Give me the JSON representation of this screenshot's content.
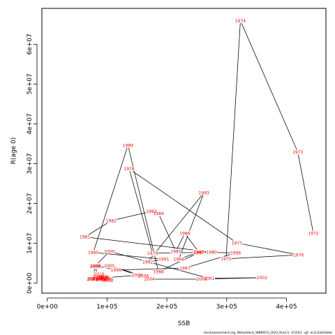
{
  "chart_data": {
    "type": "line",
    "xlabel": "SSB",
    "ylabel": "R(age 0)",
    "xlim": [
      -9000,
      466000
    ],
    "ylim": [
      -2500000,
      69000000
    ],
    "xticks": [
      {
        "value": 0,
        "label": "0e+00"
      },
      {
        "value": 100000,
        "label": "1e+05"
      },
      {
        "value": 200000,
        "label": "2e+05"
      },
      {
        "value": 300000,
        "label": "3e+05"
      },
      {
        "value": 400000,
        "label": "4e+05"
      }
    ],
    "yticks": [
      {
        "value": 0,
        "label": "0e+00"
      },
      {
        "value": 10000000,
        "label": "1e+07"
      },
      {
        "value": 20000000,
        "label": "2e+07"
      },
      {
        "value": 30000000,
        "label": "3e+07"
      },
      {
        "value": 40000000,
        "label": "4e+07"
      },
      {
        "value": 50000000,
        "label": "5e+07"
      },
      {
        "value": 60000000,
        "label": "6e+07"
      }
    ],
    "grid": false,
    "line_color": "#000000",
    "label_color": "#ff0000",
    "points": [
      {
        "year": "1972",
        "x": 445000,
        "y": 12500000
      },
      {
        "year": "1973",
        "x": 419000,
        "y": 32900000
      },
      {
        "year": "1974",
        "x": 323000,
        "y": 65900000
      },
      {
        "year": "1975",
        "x": 299000,
        "y": 6100000
      },
      {
        "year": "1976",
        "x": 420000,
        "y": 7100000
      },
      {
        "year": "1977",
        "x": 317000,
        "y": 10100000
      },
      {
        "year": "1978",
        "x": 137000,
        "y": 28700000
      },
      {
        "year": "1979",
        "x": 176000,
        "y": 7500000
      },
      {
        "year": "1980",
        "x": 275000,
        "y": 7800000
      },
      {
        "year": "1981",
        "x": 63000,
        "y": 11600000
      },
      {
        "year": "1982",
        "x": 107000,
        "y": 15700000
      },
      {
        "year": "1983",
        "x": 174000,
        "y": 18000000
      },
      {
        "year": "1984",
        "x": 186000,
        "y": 17500000
      },
      {
        "year": "1985",
        "x": 215000,
        "y": 8000000
      },
      {
        "year": "1986",
        "x": 230000,
        "y": 12500000
      },
      {
        "year": "1987",
        "x": 254000,
        "y": 7700000
      },
      {
        "year": "1988",
        "x": 186000,
        "y": 2900000
      },
      {
        "year": "1989",
        "x": 135000,
        "y": 34600000
      },
      {
        "year": "1990",
        "x": 77000,
        "y": 7700000
      },
      {
        "year": "1991",
        "x": 195000,
        "y": 6000000
      },
      {
        "year": "1992",
        "x": 168000,
        "y": 5300000
      },
      {
        "year": "1993",
        "x": 262000,
        "y": 22700000
      },
      {
        "year": "1994",
        "x": 220000,
        "y": 6000000
      },
      {
        "year": "1995",
        "x": 253000,
        "y": 7800000
      },
      {
        "year": "1996",
        "x": 315000,
        "y": 7600000
      },
      {
        "year": "1997",
        "x": 230000,
        "y": 3800000
      },
      {
        "year": "1998",
        "x": 115000,
        "y": 3300000
      },
      {
        "year": "1999",
        "x": 81000,
        "y": 4400000
      },
      {
        "year": "2000",
        "x": 104000,
        "y": 8000000
      },
      {
        "year": "2001",
        "x": 271000,
        "y": 1200000
      },
      {
        "year": "2002",
        "x": 359000,
        "y": 1400000
      },
      {
        "year": "2003",
        "x": 258000,
        "y": 1000000
      },
      {
        "year": "2004",
        "x": 171000,
        "y": 1000000
      },
      {
        "year": "2005",
        "x": 104000,
        "y": 4400000
      },
      {
        "year": "2006",
        "x": 161000,
        "y": 1800000
      },
      {
        "year": "2007",
        "x": 150000,
        "y": 2000000
      },
      {
        "year": "2008",
        "x": 76000,
        "y": 1100000
      },
      {
        "year": "2009",
        "x": 80000,
        "y": 4200000
      },
      {
        "year": "2010",
        "x": 85000,
        "y": 1600000
      },
      {
        "year": "2011",
        "x": 90000,
        "y": 1200000
      },
      {
        "year": "2012",
        "x": 102000,
        "y": 800000
      },
      {
        "year": "2013",
        "x": 94000,
        "y": 1300000
      },
      {
        "year": "2014",
        "x": 97000,
        "y": 1000000
      },
      {
        "year": "2015",
        "x": 100000,
        "y": 900000
      },
      {
        "year": "2016",
        "x": 87000,
        "y": 2300000
      },
      {
        "year": "2017",
        "x": 83000,
        "y": 1000000
      },
      {
        "year": "2018",
        "x": 92000,
        "y": 1600000
      },
      {
        "year": "2019",
        "x": 90000,
        "y": 900000
      },
      {
        "year": "2020",
        "x": 95000,
        "y": 1500000
      },
      {
        "year": "2021",
        "x": 75000,
        "y": 1000000
      },
      {
        "year": "2022",
        "x": 85000,
        "y": 1200000
      }
    ],
    "footnote": "stockassessment.org, NShaddock_WKNSCS_2022_Run13, r15503 , git: ec2c2a0c6dde"
  }
}
